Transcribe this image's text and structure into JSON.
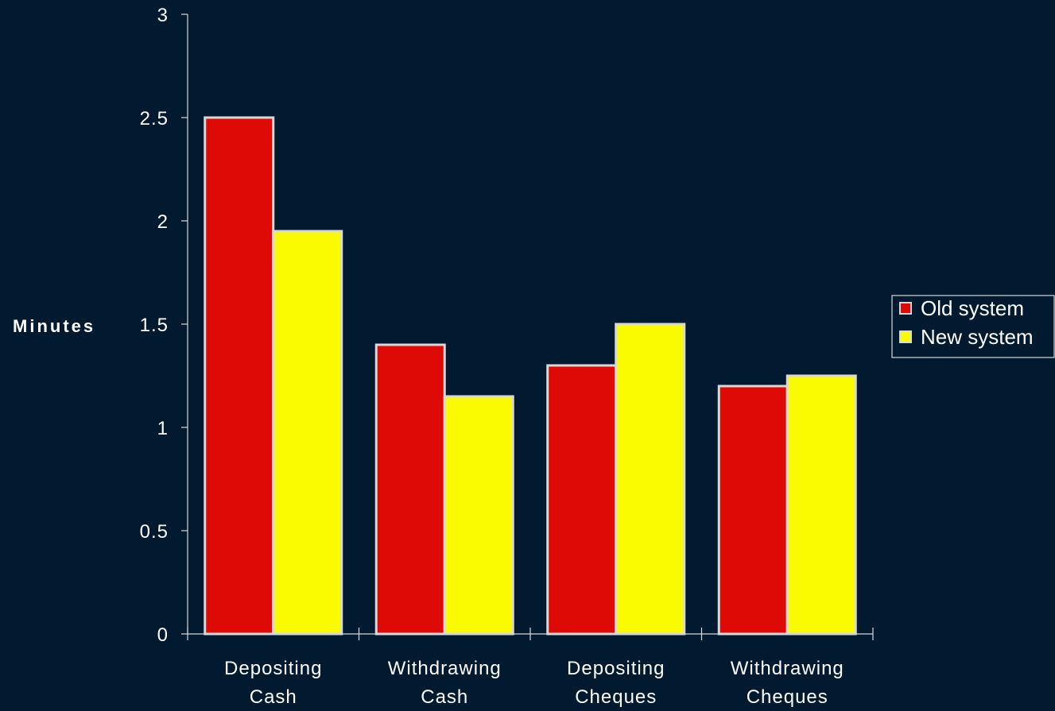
{
  "chart_data": {
    "type": "bar",
    "categories": [
      [
        "Depositing",
        "Cash"
      ],
      [
        "Withdrawing",
        "Cash"
      ],
      [
        "Depositing",
        "Cheques"
      ],
      [
        "Withdrawing",
        "Cheques"
      ]
    ],
    "series": [
      {
        "name": "Old system",
        "values": [
          2.5,
          1.4,
          1.3,
          1.2
        ],
        "color": "#dd0a05"
      },
      {
        "name": "New system",
        "values": [
          1.95,
          1.15,
          1.5,
          1.25
        ],
        "color": "#fafa00"
      }
    ],
    "ylabel": "Minutes",
    "xlabel": "",
    "title": "",
    "ylim": [
      0,
      3
    ],
    "yticks": [
      "0",
      "0.5",
      "1",
      "1.5",
      "2",
      "2.5",
      "3"
    ],
    "grid": false,
    "legend_position": "right",
    "colors": {
      "background": "#011a30",
      "axis": "#d8d8d8",
      "bar_border": "#d8d8d8",
      "text": "#ffffff"
    }
  }
}
